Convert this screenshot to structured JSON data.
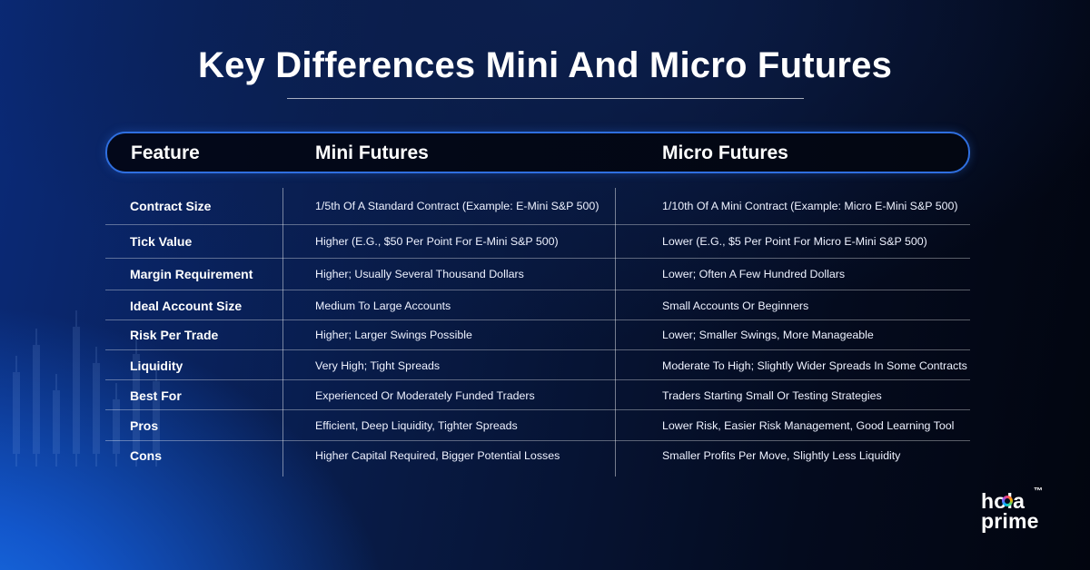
{
  "title": "Key Differences Mini And Micro Futures",
  "table": {
    "headers": {
      "feature": "Feature",
      "mini": "Mini Futures",
      "micro": "Micro Futures"
    },
    "rows": [
      {
        "feature": "Contract Size",
        "mini": "1/5th Of A Standard Contract (Example: E-Mini S&P 500)",
        "micro": "1/10th Of A Mini Contract (Example: Micro E-Mini S&P 500)"
      },
      {
        "feature": "Tick Value",
        "mini": "Higher (E.G., $50 Per Point For E-Mini S&P 500)",
        "micro": "Lower (E.G., $5 Per Point For Micro E-Mini S&P 500)"
      },
      {
        "feature": "Margin Requirement",
        "mini": "Higher; Usually Several Thousand Dollars",
        "micro": "Lower; Often A Few Hundred Dollars"
      },
      {
        "feature": "Ideal Account Size",
        "mini": "Medium To Large Accounts",
        "micro": "Small Accounts Or Beginners"
      },
      {
        "feature": "Risk Per Trade",
        "mini": "Higher; Larger Swings Possible",
        "micro": "Lower; Smaller Swings, More Manageable"
      },
      {
        "feature": "Liquidity",
        "mini": "Very High; Tight Spreads",
        "micro": "Moderate To High; Slightly Wider Spreads In Some Contracts"
      },
      {
        "feature": "Best For",
        "mini": "Experienced Or Moderately Funded Traders",
        "micro": "Traders Starting Small Or Testing Strategies"
      },
      {
        "feature": "Pros",
        "mini": "Efficient, Deep Liquidity, Tighter Spreads",
        "micro": "Lower Risk, Easier Risk Management, Good Learning Tool"
      },
      {
        "feature": "Cons",
        "mini": "Higher Capital Required, Bigger Potential Losses",
        "micro": "Smaller Profits Per Move, Slightly Less Liquidity"
      }
    ]
  },
  "logo": {
    "line1": "hola",
    "line2": "prime",
    "trademark": "™"
  }
}
